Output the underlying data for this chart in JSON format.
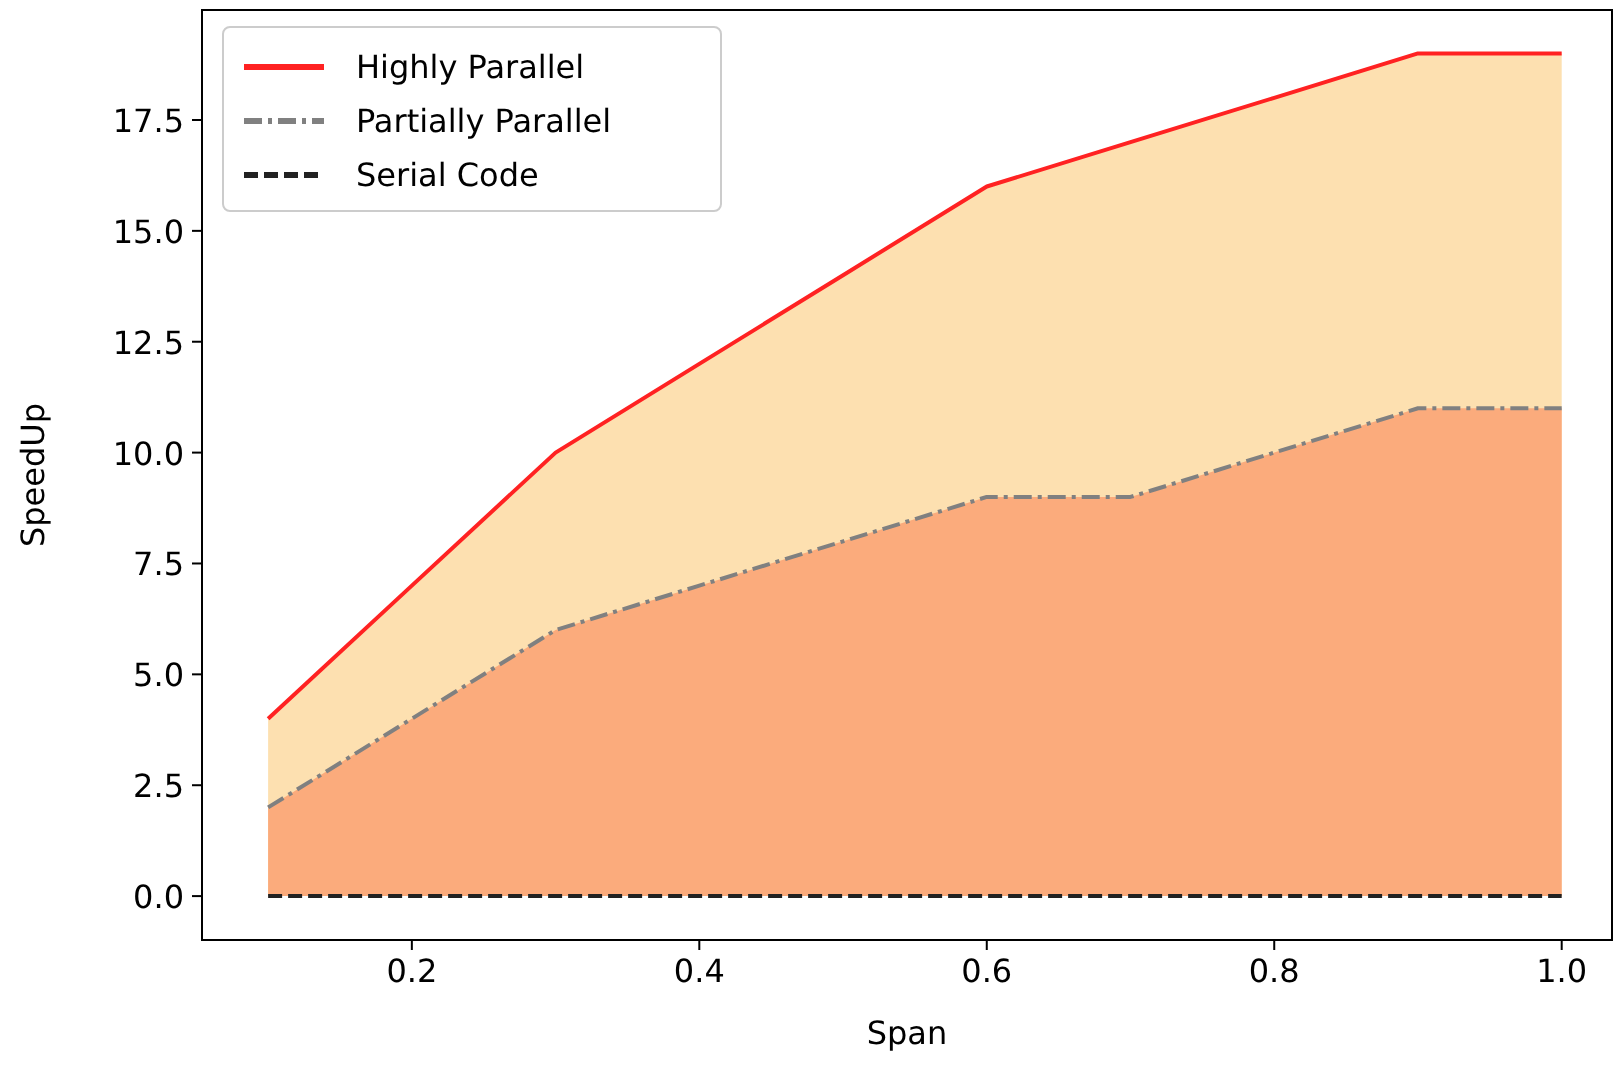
{
  "chart_data": {
    "type": "line",
    "xlabel": "Span",
    "ylabel": "SpeedUp",
    "x": [
      0.1,
      0.2,
      0.3,
      0.4,
      0.5,
      0.6,
      0.7,
      0.8,
      0.9,
      1.0
    ],
    "series": [
      {
        "name": "Highly Parallel",
        "type": "area",
        "color": "#ff2222",
        "line_style": "solid",
        "values": [
          4,
          7,
          10,
          12,
          14,
          16,
          17,
          18,
          19,
          19
        ]
      },
      {
        "name": "Partially Parallel",
        "type": "area",
        "color": "#808080",
        "line_style": "dashdot",
        "values": [
          2,
          4,
          6,
          7,
          8,
          9,
          9,
          10,
          11,
          11
        ]
      },
      {
        "name": "Serial Code",
        "color": "#222222",
        "line_style": "dashed",
        "values": [
          0,
          0,
          0,
          0,
          0,
          0,
          0,
          0,
          0,
          0
        ]
      }
    ],
    "xlim": [
      0.054,
      1.035
    ],
    "ylim": [
      -0.99,
      19.98
    ],
    "xticks": [
      0.2,
      0.4,
      0.6,
      0.8,
      {
        "value": 1,
        "label": "1.0"
      }
    ],
    "yticks": [
      {
        "value": 0,
        "label": "0.0"
      },
      {
        "value": 2.5,
        "label": "2.5"
      },
      {
        "value": 5,
        "label": "5.0"
      },
      {
        "value": 7.5,
        "label": "7.5"
      },
      {
        "value": 10,
        "label": "10.0"
      },
      {
        "value": 12.5,
        "label": "12.5"
      },
      {
        "value": 15,
        "label": "15.0"
      },
      {
        "value": 17.5,
        "label": "17.5"
      }
    ],
    "colors": [
      "#fde0b0",
      "#fbab7c"
    ],
    "legend": "top left",
    "grid": false
  }
}
